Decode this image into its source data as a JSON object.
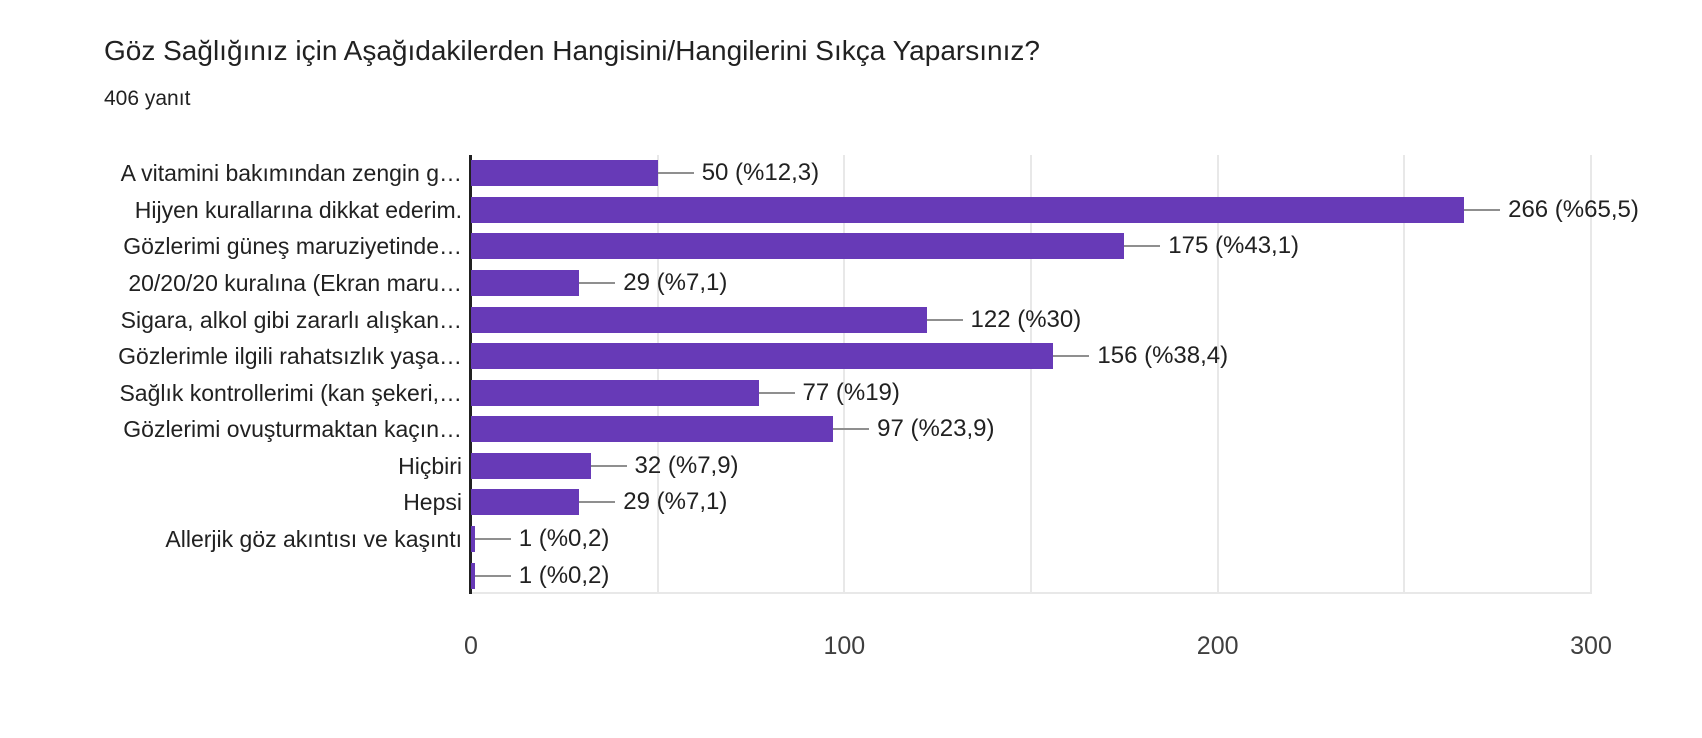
{
  "chart_data": {
    "type": "bar",
    "orientation": "horizontal",
    "title": "Göz Sağlığınız için Aşağıdakilerden Hangisini/Hangilerini Sıkça Yaparsınız?",
    "subtitle": "406 yanıt",
    "categories": [
      "A vitamini bakımından zengin g…",
      "Hijyen kurallarına dikkat ederim.",
      "Gözlerimi güneş maruziyetinde…",
      "20/20/20 kuralına (Ekran maru…",
      "Sigara, alkol gibi zararlı alışkan…",
      "Gözlerimle ilgili rahatsızlık yaşa…",
      "Sağlık kontrollerimi (kan şekeri,…",
      "Gözlerimi ovuşturmaktan kaçın…",
      "Hiçbiri",
      "Hepsi",
      "Allerjik göz akıntısı ve kaşıntı",
      ""
    ],
    "values": [
      50,
      266,
      175,
      29,
      122,
      156,
      77,
      97,
      32,
      29,
      1,
      1
    ],
    "value_labels": [
      "50 (%12,3)",
      "266 (%65,5)",
      "175 (%43,1)",
      "29 (%7,1)",
      "122 (%30)",
      "156 (%38,4)",
      "77 (%19)",
      "97 (%23,9)",
      "32 (%7,9)",
      "29 (%7,1)",
      "1 (%0,2)",
      "1 (%0,2)"
    ],
    "xlabel": "",
    "ylabel": "",
    "xlim": [
      0,
      300
    ],
    "x_ticks": [
      "0",
      "100",
      "200",
      "300"
    ],
    "x_tick_values": [
      0,
      100,
      200,
      300
    ],
    "gridline_step": 50,
    "grid": true,
    "legend": "none",
    "bar_color": "#673ab7"
  }
}
